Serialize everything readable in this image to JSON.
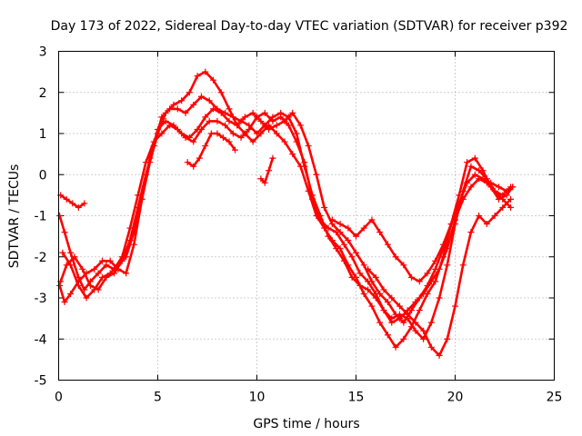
{
  "chart_data": {
    "type": "scatter",
    "title": "Day 173 of 2022, Sidereal Day-to-day VTEC variation (SDTVAR) for receiver p392",
    "xlabel": "GPS time / hours",
    "ylabel": "SDTVAR / TECUs",
    "xlim": [
      0,
      25
    ],
    "ylim": [
      -5,
      3
    ],
    "xticks": [
      "0",
      "5",
      "10",
      "15",
      "20",
      "25"
    ],
    "yticks": [
      "3",
      "2",
      "1",
      "0",
      "-1",
      "-2",
      "-3",
      "-4",
      "-5"
    ],
    "grid": true,
    "marker": "+",
    "color": "#ff0000",
    "series": [
      {
        "name": "s1",
        "x": [
          0.05,
          0.3,
          0.6,
          1.0,
          1.3,
          1.6,
          2.0,
          2.4,
          2.8,
          3.2,
          3.6,
          4.0,
          4.4,
          4.8,
          5.2,
          5.6,
          6.0,
          6.4,
          6.8,
          7.2,
          7.6,
          8.0,
          8.4,
          8.8,
          9.2,
          9.6,
          10.0,
          10.4,
          10.8,
          11.2,
          11.6,
          12.0,
          12.4,
          12.8,
          13.2,
          13.6,
          14.0,
          14.4,
          14.8,
          15.2,
          15.6,
          16.0,
          16.4,
          16.8,
          17.2,
          17.6,
          18.0,
          18.4,
          18.8,
          19.2,
          19.6,
          20.0,
          20.4,
          20.8,
          21.2,
          21.6,
          22.0,
          22.4,
          22.8
        ],
        "y": [
          -1.0,
          -1.4,
          -1.9,
          -2.5,
          -2.8,
          -2.6,
          -2.4,
          -2.2,
          -2.3,
          -2.0,
          -1.3,
          -0.5,
          0.3,
          0.8,
          1.0,
          1.2,
          1.1,
          0.9,
          0.8,
          1.1,
          1.3,
          1.3,
          1.2,
          1.0,
          0.9,
          1.1,
          1.4,
          1.5,
          1.3,
          1.4,
          1.2,
          0.8,
          0.3,
          -0.6,
          -1.1,
          -1.3,
          -1.4,
          -1.7,
          -2.0,
          -2.4,
          -2.6,
          -2.9,
          -3.3,
          -3.6,
          -3.5,
          -3.3,
          -3.1,
          -2.9,
          -2.6,
          -2.3,
          -1.8,
          -1.1,
          -0.6,
          -0.3,
          -0.1,
          -0.2,
          -0.4,
          -0.5,
          -0.3
        ]
      },
      {
        "name": "s2",
        "x": [
          0.1,
          0.4,
          0.8,
          1.2,
          1.6,
          2.0,
          2.4,
          2.8,
          3.2,
          3.6,
          4.0,
          4.4,
          4.8,
          5.2,
          5.6,
          6.0,
          6.4,
          6.8,
          7.2,
          7.6,
          8.0,
          8.4,
          8.8,
          9.2,
          9.6,
          10.0,
          10.4,
          10.8,
          11.2,
          11.6,
          12.0,
          12.4,
          12.8,
          13.2,
          13.6,
          14.0,
          14.4,
          14.8,
          15.2,
          15.6,
          16.0,
          16.4,
          16.8,
          17.2,
          17.6,
          18.0,
          18.4,
          18.8,
          19.2,
          19.6,
          20.0,
          20.4,
          20.8,
          21.2,
          21.6,
          22.0,
          22.4,
          22.8
        ],
        "y": [
          -2.6,
          -2.2,
          -2.0,
          -2.3,
          -2.7,
          -2.8,
          -2.5,
          -2.4,
          -2.1,
          -1.6,
          -0.8,
          0.0,
          0.7,
          1.4,
          1.6,
          1.6,
          1.5,
          1.7,
          1.9,
          1.8,
          1.6,
          1.5,
          1.4,
          1.3,
          1.2,
          1.0,
          1.2,
          1.4,
          1.5,
          1.4,
          1.0,
          0.2,
          -0.5,
          -1.0,
          -1.5,
          -1.8,
          -2.1,
          -2.5,
          -2.7,
          -2.8,
          -3.0,
          -3.3,
          -3.5,
          -3.4,
          -3.5,
          -3.8,
          -4.0,
          -3.6,
          -3.0,
          -2.2,
          -1.2,
          -0.4,
          0.2,
          0.1,
          -0.1,
          -0.4,
          -0.6,
          -0.8
        ]
      },
      {
        "name": "s3",
        "x": [
          0.05,
          0.3,
          0.6,
          1.0,
          1.4,
          1.8,
          2.2,
          2.6,
          3.0,
          3.4,
          3.8,
          4.2,
          4.6,
          5.0,
          5.4,
          5.8,
          6.2,
          6.6,
          7.0,
          7.4,
          7.8,
          8.2,
          8.6,
          9.0,
          9.4,
          9.8,
          10.2,
          10.6,
          11.0,
          11.4,
          11.8,
          12.2,
          12.6,
          13.0,
          13.4,
          13.8,
          14.2,
          14.6,
          15.0,
          15.4,
          15.8,
          16.2,
          16.6,
          17.0,
          17.4,
          17.8,
          18.2,
          18.6,
          19.0,
          19.4,
          19.8,
          20.2,
          20.6,
          21.0,
          21.4,
          21.8,
          22.2,
          22.6,
          22.9
        ],
        "y": [
          -2.7,
          -3.1,
          -2.9,
          -2.6,
          -2.4,
          -2.3,
          -2.1,
          -2.1,
          -2.3,
          -2.4,
          -1.7,
          -0.6,
          0.3,
          1.0,
          1.5,
          1.7,
          1.8,
          2.0,
          2.4,
          2.5,
          2.3,
          2.0,
          1.6,
          1.2,
          1.0,
          0.8,
          1.0,
          1.2,
          1.0,
          0.8,
          0.5,
          0.2,
          -0.4,
          -1.0,
          -1.3,
          -1.6,
          -1.8,
          -2.2,
          -2.5,
          -2.9,
          -3.2,
          -3.6,
          -3.9,
          -4.2,
          -4.0,
          -3.7,
          -3.3,
          -2.9,
          -2.6,
          -2.0,
          -1.2,
          -0.5,
          0.3,
          0.4,
          0.1,
          -0.3,
          -0.6,
          -0.5,
          -0.3
        ]
      },
      {
        "name": "s4",
        "x": [
          0.2,
          0.6,
          1.0,
          1.4,
          1.8,
          2.2,
          2.6,
          3.0,
          3.4,
          3.8,
          4.2,
          4.6,
          5.0,
          5.4,
          5.8,
          6.2,
          6.6,
          7.0,
          7.4,
          7.8,
          8.2,
          8.6,
          9.0,
          9.4,
          9.8,
          10.2,
          10.6,
          11.0,
          11.4,
          11.8,
          12.2,
          12.6,
          13.0,
          13.4,
          13.8,
          14.2,
          14.6,
          15.0,
          15.4,
          15.8,
          16.2,
          16.6,
          17.0,
          17.4,
          17.8,
          18.2,
          18.6,
          19.0,
          19.4,
          19.8,
          20.2,
          20.6,
          21.0,
          21.4,
          21.8,
          22.2,
          22.6,
          22.9
        ],
        "y": [
          -1.9,
          -2.2,
          -2.7,
          -3.0,
          -2.8,
          -2.5,
          -2.4,
          -2.2,
          -2.0,
          -1.4,
          -0.6,
          0.4,
          1.1,
          1.3,
          1.2,
          1.0,
          0.9,
          1.1,
          1.4,
          1.6,
          1.5,
          1.3,
          1.2,
          1.4,
          1.5,
          1.3,
          1.1,
          1.2,
          1.3,
          1.5,
          1.2,
          0.7,
          0.0,
          -0.8,
          -1.2,
          -1.4,
          -1.6,
          -1.9,
          -2.2,
          -2.6,
          -2.9,
          -3.1,
          -3.4,
          -3.6,
          -3.3,
          -3.0,
          -2.7,
          -2.3,
          -1.8,
          -1.2,
          -0.7,
          -0.2,
          0.0,
          -0.1,
          -0.2,
          -0.3,
          -0.4,
          -0.3
        ]
      },
      {
        "name": "s5",
        "x": [
          0.1,
          0.4,
          0.7,
          1.0,
          1.3
        ],
        "y": [
          -0.5,
          -0.6,
          -0.7,
          -0.8,
          -0.7
        ]
      },
      {
        "name": "s6",
        "x": [
          6.5,
          6.8,
          7.1,
          7.4,
          7.7,
          8.0,
          8.3,
          8.6,
          8.9
        ],
        "y": [
          0.3,
          0.2,
          0.4,
          0.7,
          1.0,
          1.0,
          0.9,
          0.8,
          0.6
        ]
      },
      {
        "name": "s7",
        "x": [
          10.2,
          10.4,
          10.6,
          10.8
        ],
        "y": [
          -0.1,
          -0.2,
          0.1,
          0.4
        ]
      },
      {
        "name": "s8",
        "x": [
          13.8,
          14.2,
          14.6,
          15.0,
          15.4,
          15.8,
          16.2,
          16.6,
          17.0,
          17.4,
          17.8,
          18.2,
          18.6,
          19.0,
          19.4,
          19.8
        ],
        "y": [
          -1.1,
          -1.2,
          -1.3,
          -1.5,
          -1.3,
          -1.1,
          -1.4,
          -1.7,
          -2.0,
          -2.2,
          -2.5,
          -2.6,
          -2.4,
          -2.1,
          -1.7,
          -1.2
        ]
      },
      {
        "name": "s9",
        "x": [
          15.6,
          16.0,
          16.4,
          16.8,
          17.2,
          17.6,
          18.0,
          18.4,
          18.8,
          19.2,
          19.6,
          20.0,
          20.4,
          20.8,
          21.2,
          21.6,
          22.0,
          22.4,
          22.8
        ],
        "y": [
          -2.3,
          -2.5,
          -2.8,
          -3.0,
          -3.2,
          -3.4,
          -3.6,
          -3.8,
          -4.2,
          -4.4,
          -4.0,
          -3.2,
          -2.2,
          -1.4,
          -1.0,
          -1.2,
          -1.0,
          -0.8,
          -0.6
        ]
      }
    ]
  }
}
